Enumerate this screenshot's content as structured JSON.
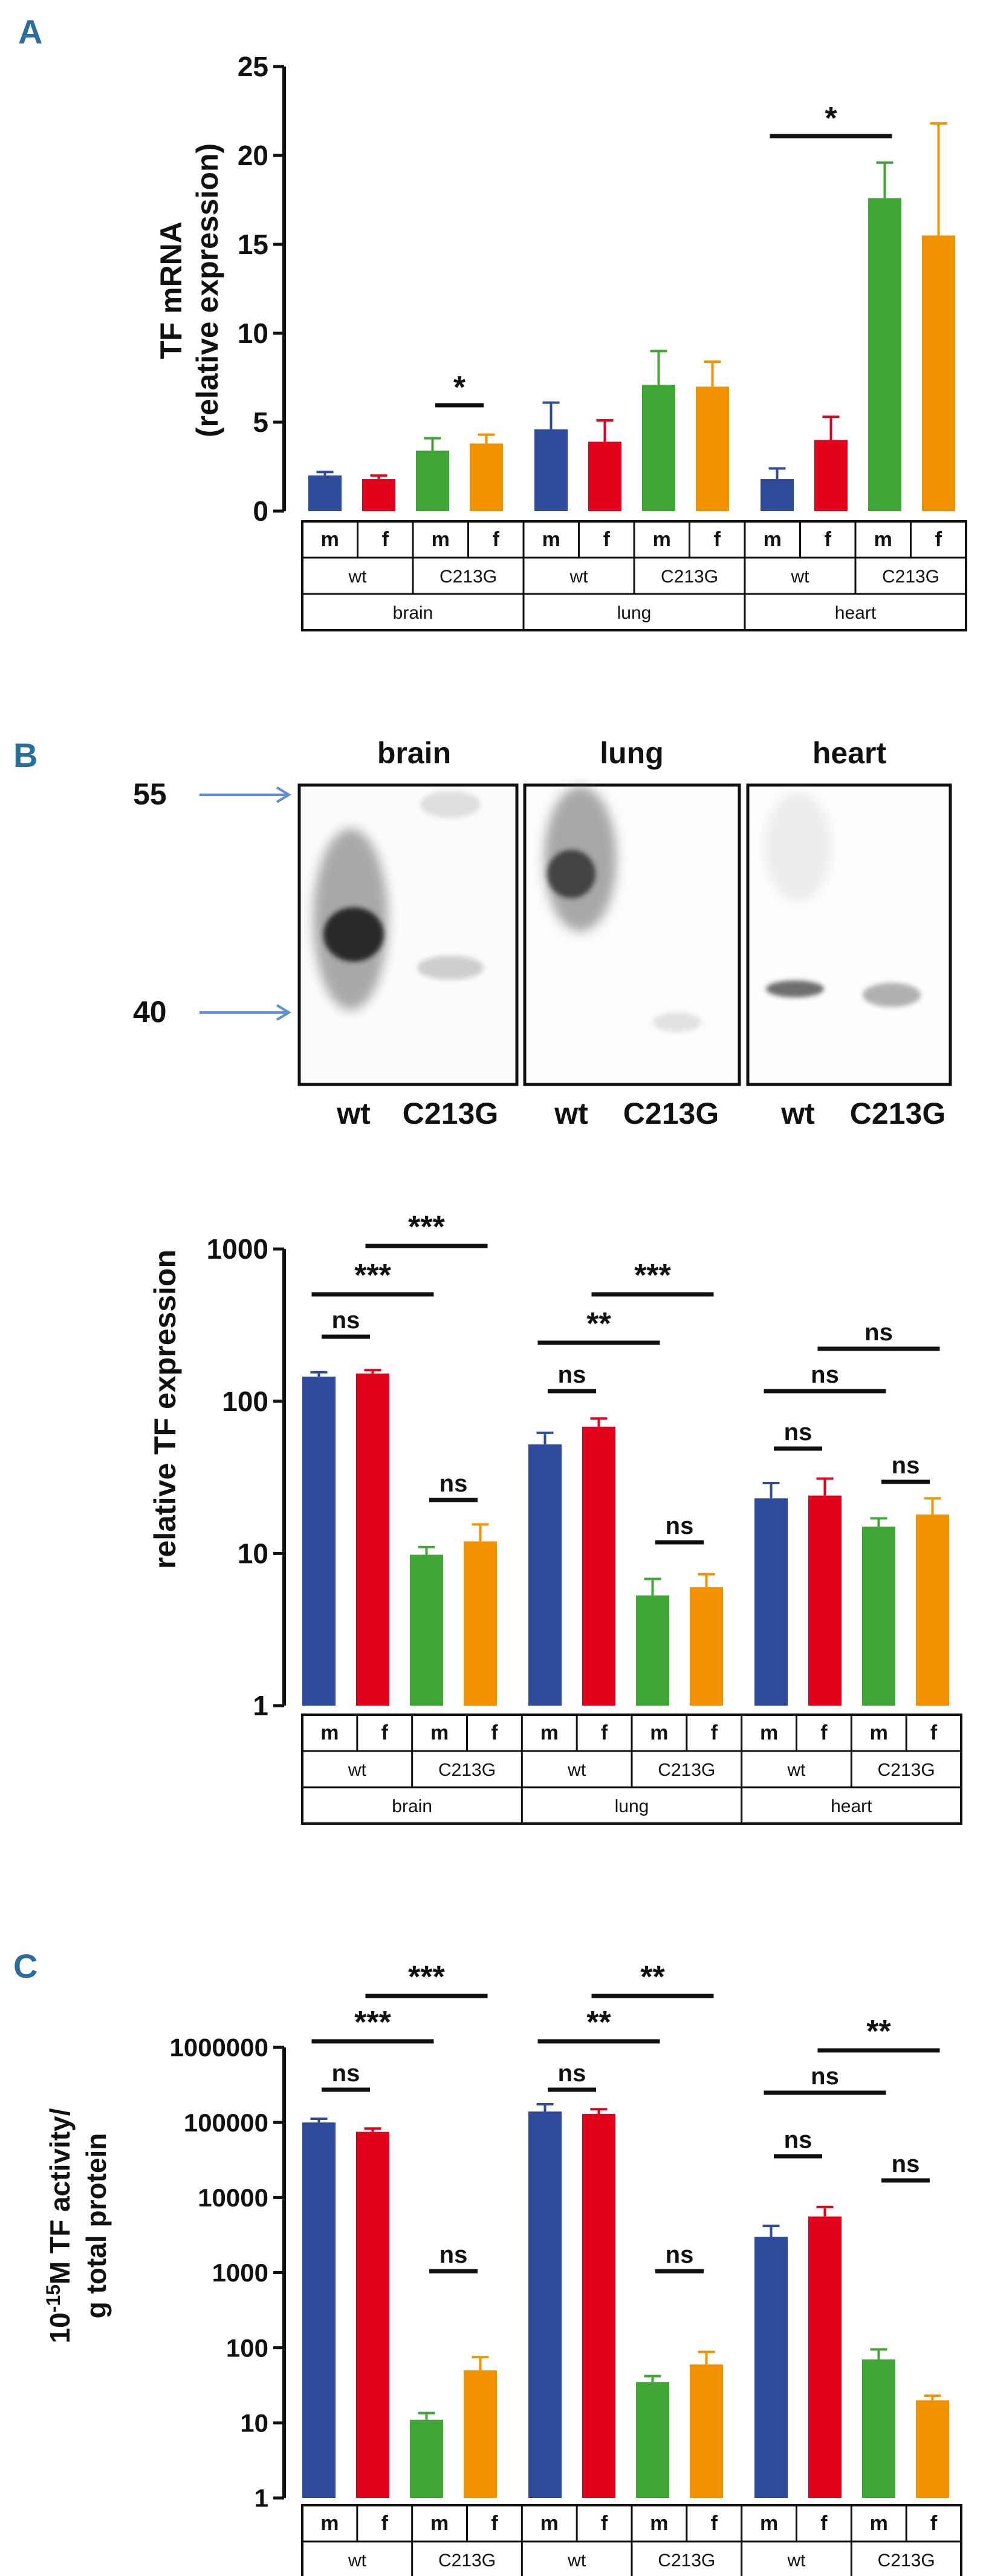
{
  "colors": {
    "wt_m": "#2e4a9a",
    "wt_f": "#e3001b",
    "c213g_m": "#3fa535",
    "c213g_f": "#f39200",
    "panel_label": "#2a6e9e",
    "arrow": "#5b8fd3"
  },
  "table": {
    "sex": [
      "m",
      "f",
      "m",
      "f",
      "m",
      "f",
      "m",
      "f",
      "m",
      "f",
      "m",
      "f"
    ],
    "genotype": [
      "wt",
      "C213G",
      "wt",
      "C213G",
      "wt",
      "C213G"
    ],
    "organ": [
      "brain",
      "lung",
      "heart"
    ]
  },
  "panels": [
    {
      "label": "A"
    },
    {
      "label": "B"
    },
    {
      "label": "C"
    }
  ],
  "blot": {
    "organs": [
      "brain",
      "lung",
      "heart"
    ],
    "lanes": [
      "wt",
      "C213G"
    ],
    "markers": [
      "55",
      "40"
    ]
  },
  "chart_data": [
    {
      "type": "bar",
      "panel": "A",
      "ylabel_line1": "TF mRNA",
      "ylabel_line2": "(relative expression)",
      "scale": "linear",
      "ylim": [
        0,
        25
      ],
      "yticks": [
        0,
        5,
        10,
        15,
        20,
        25
      ],
      "ytick_labels": [
        "0",
        "5",
        "10",
        "15",
        "20",
        "25"
      ],
      "values": [
        2.0,
        1.8,
        3.4,
        3.8,
        4.6,
        3.9,
        7.1,
        7.0,
        1.8,
        4.0,
        17.6,
        15.5
      ],
      "errors": [
        2.2,
        2.0,
        4.1,
        4.3,
        6.1,
        5.1,
        9.0,
        8.4,
        2.4,
        5.3,
        19.6,
        21.8
      ],
      "comparisons": [
        {
          "from": 2,
          "to": 3,
          "label": "*"
        },
        {
          "from": 8,
          "to": 10,
          "label": "*"
        }
      ]
    },
    {
      "type": "bar",
      "panel": "B",
      "ylabel_line1": "relative TF expression",
      "ylabel_line2": "",
      "scale": "log",
      "ylim": [
        1,
        1000
      ],
      "yticks": [
        1,
        10,
        100,
        1000
      ],
      "ytick_labels": [
        "1",
        "10",
        "100",
        "1000"
      ],
      "values": [
        145,
        152,
        9.8,
        12,
        52,
        68,
        5.3,
        6.0,
        23,
        24,
        15,
        18
      ],
      "errors": [
        155,
        160,
        11,
        15.5,
        62,
        77,
        6.8,
        7.3,
        29,
        31,
        17,
        23
      ],
      "comparisons": [
        {
          "from": 0,
          "to": 2,
          "label": "***"
        },
        {
          "from": 1,
          "to": 3,
          "label": "***"
        },
        {
          "from": 0,
          "to": 1,
          "label": "ns"
        },
        {
          "from": 2,
          "to": 3,
          "label": "ns"
        },
        {
          "from": 4,
          "to": 6,
          "label": "**"
        },
        {
          "from": 5,
          "to": 7,
          "label": "***"
        },
        {
          "from": 4,
          "to": 5,
          "label": "ns"
        },
        {
          "from": 6,
          "to": 7,
          "label": "ns"
        },
        {
          "from": 8,
          "to": 10,
          "label": "ns"
        },
        {
          "from": 9,
          "to": 11,
          "label": "ns"
        },
        {
          "from": 8,
          "to": 9,
          "label": "ns"
        },
        {
          "from": 10,
          "to": 11,
          "label": "ns"
        }
      ]
    },
    {
      "type": "bar",
      "panel": "C",
      "ylabel_line1": "10-15M TF activity/",
      "ylabel_line2": "g total protein",
      "scale": "log",
      "ylim": [
        1,
        1000000
      ],
      "yticks": [
        1,
        10,
        100,
        1000,
        10000,
        100000,
        1000000
      ],
      "ytick_labels": [
        "1",
        "10",
        "100",
        "1000",
        "10000",
        "100000",
        "1000000"
      ],
      "values": [
        100000,
        75000,
        11,
        50,
        140000,
        130000,
        35,
        60,
        3000,
        5600,
        70,
        20
      ],
      "errors": [
        112000,
        83000,
        13.5,
        75,
        175000,
        150000,
        42,
        88,
        4200,
        7500,
        95,
        23
      ],
      "comparisons": [
        {
          "from": 0,
          "to": 2,
          "label": "***"
        },
        {
          "from": 1,
          "to": 3,
          "label": "***"
        },
        {
          "from": 0,
          "to": 1,
          "label": "ns"
        },
        {
          "from": 2,
          "to": 3,
          "label": "ns"
        },
        {
          "from": 4,
          "to": 6,
          "label": "**"
        },
        {
          "from": 5,
          "to": 7,
          "label": "**"
        },
        {
          "from": 4,
          "to": 5,
          "label": "ns"
        },
        {
          "from": 6,
          "to": 7,
          "label": "ns"
        },
        {
          "from": 8,
          "to": 10,
          "label": "ns"
        },
        {
          "from": 9,
          "to": 11,
          "label": "**"
        },
        {
          "from": 8,
          "to": 9,
          "label": "ns"
        },
        {
          "from": 10,
          "to": 11,
          "label": "ns"
        }
      ]
    }
  ]
}
